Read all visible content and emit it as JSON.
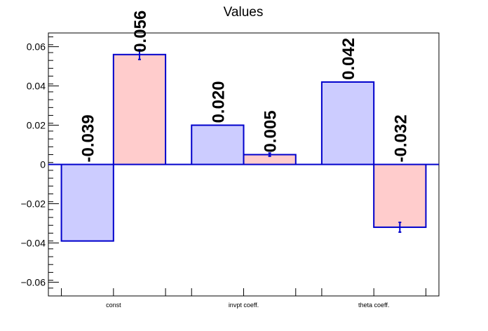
{
  "chart_data": {
    "type": "bar",
    "title": "Values",
    "xlabel": "",
    "ylabel": "",
    "categories": [
      "const",
      "invpt coeff.",
      "theta coeff."
    ],
    "ylim": [
      -0.067,
      0.067
    ],
    "yticks": [
      -0.06,
      -0.04,
      -0.02,
      0,
      0.02,
      0.04,
      0.06
    ],
    "ytick_labels": [
      "−0.06",
      "−0.04",
      "−0.02",
      "0",
      "0.02",
      "0.04",
      "0.06"
    ],
    "grid": false,
    "legend": "none",
    "series": [
      {
        "values": [
          -0.039,
          0.02,
          0.042
        ],
        "labels": [
          "-0.039",
          "0.020",
          "0.042"
        ],
        "errors": [
          0,
          0,
          0
        ],
        "fill": "#ccccff",
        "stroke": "#0000cc"
      },
      {
        "values": [
          0.056,
          0.005,
          -0.032
        ],
        "labels": [
          "0.056",
          "0.005",
          "-0.032"
        ],
        "errors": [
          0.0025,
          0.0008,
          0.0025
        ],
        "fill": "#ffcccc",
        "stroke": "#0000cc"
      }
    ]
  }
}
